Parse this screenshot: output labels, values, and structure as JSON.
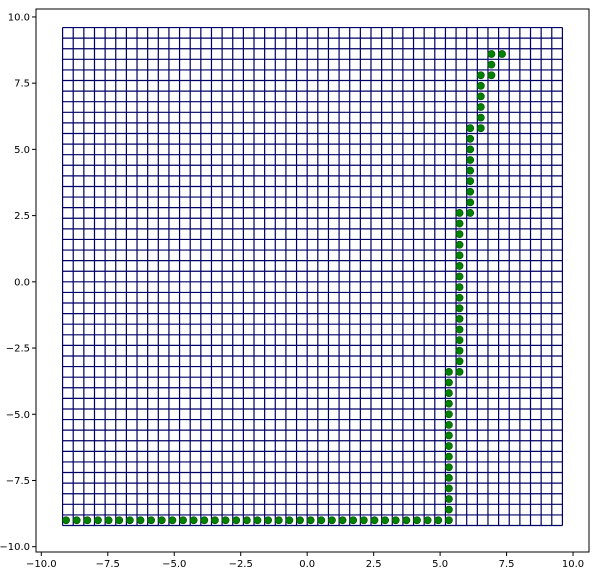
{
  "chart_data": {
    "type": "scatter",
    "title": "",
    "xlabel": "",
    "ylabel": "",
    "xlim": [
      -10.2,
      10.6
    ],
    "ylim": [
      -10.2,
      10.3
    ],
    "xticks": [
      -10.0,
      -7.5,
      -5.0,
      -2.5,
      0.0,
      2.5,
      5.0,
      7.5,
      10.0
    ],
    "yticks": [
      -10.0,
      -7.5,
      -5.0,
      -2.5,
      0.0,
      2.5,
      5.0,
      7.5,
      10.0
    ],
    "xtick_labels": [
      "−10.0",
      "−7.5",
      "−5.0",
      "−2.5",
      "0.0",
      "2.5",
      "5.0",
      "7.5",
      "10.0"
    ],
    "ytick_labels": [
      "−10.0",
      "−7.5",
      "−5.0",
      "−2.5",
      "0.0",
      "2.5",
      "5.0",
      "7.5",
      "10.0"
    ],
    "grid": {
      "x_min": -9.2,
      "x_max": 9.6,
      "x_step": 0.4,
      "y_min": -9.2,
      "y_max": 9.6,
      "y_step": 0.4,
      "color": "#000066"
    },
    "marker_color": "#008000",
    "marker_edge": "#004d00",
    "points": [
      [
        -8.2,
        -9.0
      ],
      [
        -7.8,
        -9.0
      ],
      [
        -7.4,
        -9.0
      ],
      [
        -7.0,
        -9.0
      ],
      [
        -6.6,
        -9.0
      ],
      [
        -6.2,
        -9.0
      ],
      [
        -5.8,
        -9.0
      ],
      [
        -5.4,
        -9.0
      ],
      [
        -5.0,
        -9.0
      ],
      [
        -4.6,
        -9.0
      ],
      [
        -4.2,
        -9.0
      ],
      [
        -3.8,
        -9.0
      ],
      [
        -3.4,
        -9.0
      ],
      [
        -3.0,
        -9.0
      ],
      [
        -2.6,
        -9.0
      ],
      [
        -2.2,
        -9.0
      ],
      [
        -1.8,
        -9.0
      ],
      [
        -1.4,
        -9.0
      ],
      [
        -1.0,
        -9.0
      ],
      [
        -0.6,
        -9.0
      ],
      [
        -0.2,
        -9.0
      ],
      [
        0.2,
        -9.0
      ],
      [
        0.6,
        -9.0
      ],
      [
        1.0,
        -9.0
      ],
      [
        1.4,
        -9.0
      ],
      [
        1.8,
        -9.0
      ],
      [
        2.2,
        -9.0
      ],
      [
        2.6,
        -9.0
      ],
      [
        3.0,
        -9.0
      ],
      [
        3.4,
        -9.0
      ],
      [
        3.8,
        -9.0
      ],
      [
        4.2,
        -9.0
      ],
      [
        4.6,
        -9.0
      ],
      [
        5.0,
        -9.0
      ],
      [
        5.4,
        -9.0
      ],
      [
        5.8,
        -9.0
      ],
      [
        6.2,
        -9.0
      ],
      [
        6.2,
        -8.6
      ],
      [
        6.2,
        -8.2
      ],
      [
        6.2,
        -7.8
      ],
      [
        6.2,
        -7.4
      ],
      [
        6.2,
        -7.0
      ],
      [
        6.2,
        -6.6
      ],
      [
        6.2,
        -6.2
      ],
      [
        6.2,
        -5.8
      ],
      [
        6.2,
        -5.4
      ],
      [
        6.2,
        -5.0
      ],
      [
        6.2,
        -4.6
      ],
      [
        6.2,
        -4.2
      ],
      [
        6.2,
        -3.8
      ],
      [
        6.2,
        -3.4
      ],
      [
        6.6,
        -3.4
      ],
      [
        6.6,
        -3.0
      ],
      [
        6.6,
        -2.6
      ],
      [
        6.6,
        -2.2
      ],
      [
        6.6,
        -1.8
      ],
      [
        6.6,
        -1.4
      ],
      [
        6.6,
        -1.0
      ],
      [
        6.6,
        -0.6
      ],
      [
        6.6,
        -0.2
      ],
      [
        6.6,
        0.2
      ],
      [
        6.6,
        0.6
      ],
      [
        6.6,
        1.0
      ],
      [
        6.6,
        1.4
      ],
      [
        6.6,
        1.8
      ],
      [
        6.6,
        2.2
      ],
      [
        6.6,
        2.6
      ],
      [
        7.0,
        2.6
      ],
      [
        7.0,
        3.0
      ],
      [
        7.0,
        3.4
      ],
      [
        7.0,
        3.8
      ],
      [
        7.0,
        4.2
      ],
      [
        7.0,
        4.6
      ],
      [
        7.0,
        5.0
      ],
      [
        7.0,
        5.4
      ],
      [
        7.0,
        5.8
      ],
      [
        7.4,
        5.8
      ],
      [
        7.4,
        6.2
      ],
      [
        7.4,
        6.6
      ],
      [
        7.4,
        7.0
      ],
      [
        7.4,
        7.4
      ],
      [
        7.4,
        7.8
      ],
      [
        7.8,
        7.8
      ],
      [
        7.8,
        8.2
      ],
      [
        7.8,
        8.6
      ],
      [
        8.2,
        8.6
      ]
    ]
  }
}
